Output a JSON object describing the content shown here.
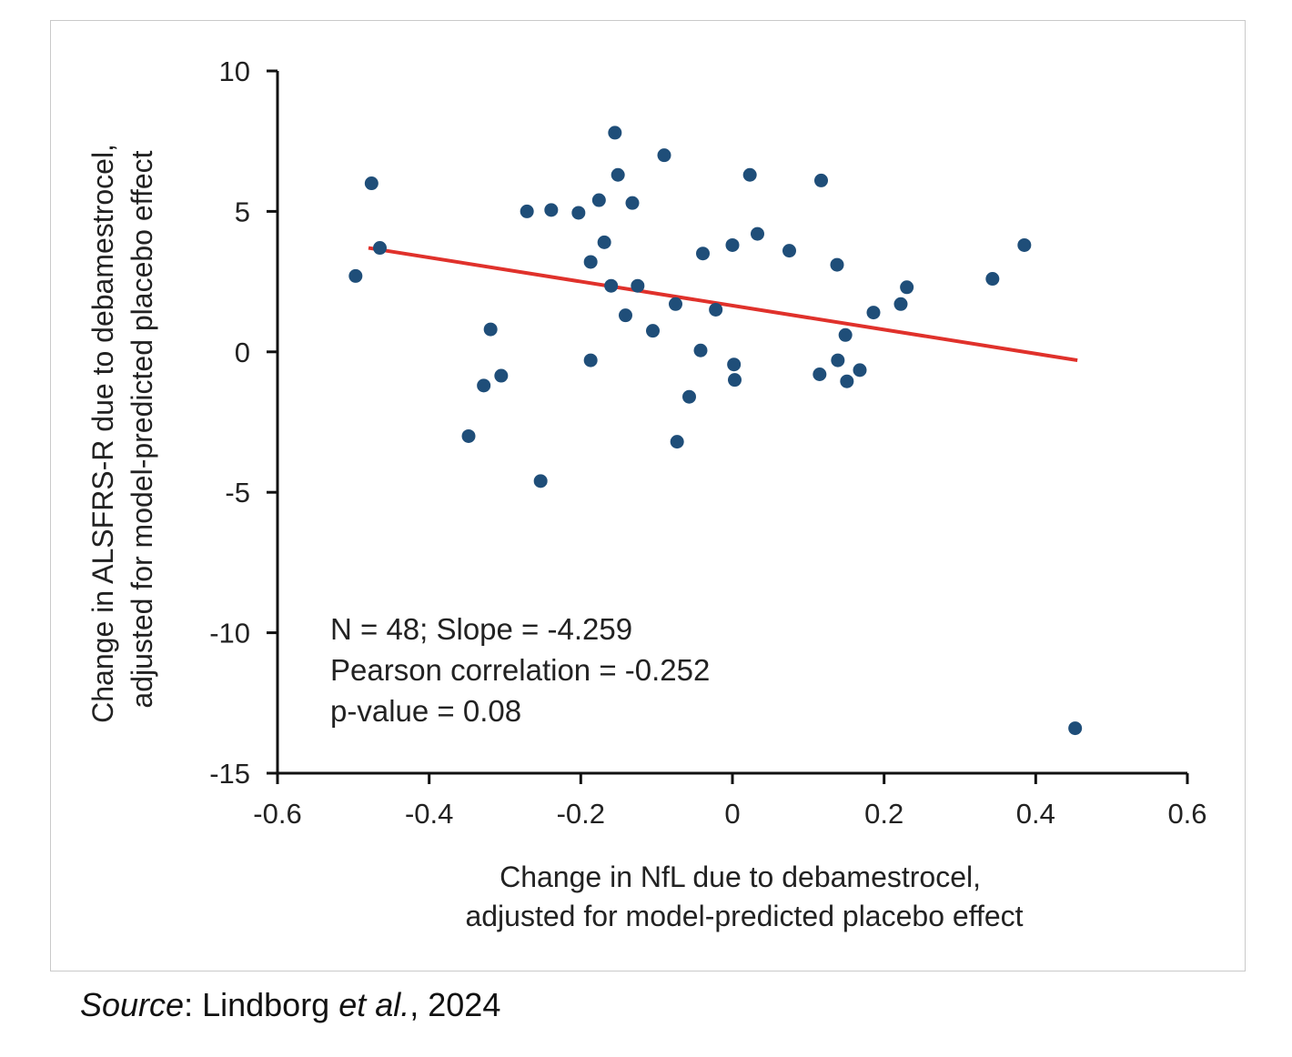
{
  "chart_data": {
    "type": "scatter",
    "xlabel_lines": [
      "Change in NfL due to debamestrocel,",
      "adjusted for model-predicted placebo effect"
    ],
    "ylabel_lines": [
      "Change in ALSFRS-R due to debamestrocel,",
      "adjusted for model-predicted placebo effect"
    ],
    "xlim": [
      -0.6,
      0.6
    ],
    "ylim": [
      -15,
      10
    ],
    "xticks": [
      -0.6,
      -0.4,
      -0.2,
      0,
      0.2,
      0.4,
      0.6
    ],
    "xtick_labels": [
      "-0.6",
      "-0.4",
      "-0.2",
      "0",
      "0.2",
      "0.4",
      "0.6"
    ],
    "yticks": [
      10,
      5,
      0,
      -5,
      -10,
      -15
    ],
    "ytick_labels": [
      "10",
      "5",
      "0",
      "-5",
      "-10",
      "-15"
    ],
    "grid": false,
    "colors": {
      "points": "#1f4e79",
      "trendline": "#e0312b",
      "axes": "#111111"
    },
    "annotations": [
      "N = 48; Slope = -4.259",
      "Pearson correlation = -0.252",
      "p-value = 0.08"
    ],
    "trendline": {
      "x": [
        -0.48,
        0.455
      ],
      "y": [
        3.7,
        -0.3
      ]
    },
    "points": [
      {
        "x": -0.497,
        "y": 2.7
      },
      {
        "x": -0.476,
        "y": 6.0
      },
      {
        "x": -0.465,
        "y": 3.7
      },
      {
        "x": -0.348,
        "y": -3.0
      },
      {
        "x": -0.328,
        "y": -1.2
      },
      {
        "x": -0.319,
        "y": 0.8
      },
      {
        "x": -0.305,
        "y": -0.85
      },
      {
        "x": -0.271,
        "y": 5.0
      },
      {
        "x": -0.253,
        "y": -4.6
      },
      {
        "x": -0.239,
        "y": 5.05
      },
      {
        "x": -0.203,
        "y": 4.95
      },
      {
        "x": -0.187,
        "y": 3.2
      },
      {
        "x": -0.187,
        "y": -0.3
      },
      {
        "x": -0.176,
        "y": 5.4
      },
      {
        "x": -0.169,
        "y": 3.9
      },
      {
        "x": -0.16,
        "y": 2.35
      },
      {
        "x": -0.155,
        "y": 7.8
      },
      {
        "x": -0.151,
        "y": 6.3
      },
      {
        "x": -0.141,
        "y": 1.3
      },
      {
        "x": -0.132,
        "y": 5.3
      },
      {
        "x": -0.125,
        "y": 2.35
      },
      {
        "x": -0.105,
        "y": 0.75
      },
      {
        "x": -0.09,
        "y": 7.0
      },
      {
        "x": -0.075,
        "y": 1.7
      },
      {
        "x": -0.073,
        "y": -3.2
      },
      {
        "x": -0.057,
        "y": -1.6
      },
      {
        "x": -0.042,
        "y": 0.05
      },
      {
        "x": -0.039,
        "y": 3.5
      },
      {
        "x": -0.022,
        "y": 1.5
      },
      {
        "x": 0.0,
        "y": 3.8
      },
      {
        "x": 0.002,
        "y": -0.45
      },
      {
        "x": 0.003,
        "y": -1.0
      },
      {
        "x": 0.023,
        "y": 6.3
      },
      {
        "x": 0.033,
        "y": 4.2
      },
      {
        "x": 0.075,
        "y": 3.6
      },
      {
        "x": 0.115,
        "y": -0.8
      },
      {
        "x": 0.117,
        "y": 6.1
      },
      {
        "x": 0.138,
        "y": 3.1
      },
      {
        "x": 0.139,
        "y": -0.3
      },
      {
        "x": 0.149,
        "y": 0.6
      },
      {
        "x": 0.151,
        "y": -1.05
      },
      {
        "x": 0.168,
        "y": -0.65
      },
      {
        "x": 0.186,
        "y": 1.4
      },
      {
        "x": 0.222,
        "y": 1.7
      },
      {
        "x": 0.23,
        "y": 2.3
      },
      {
        "x": 0.343,
        "y": 2.6
      },
      {
        "x": 0.385,
        "y": 3.8
      },
      {
        "x": 0.452,
        "y": -13.4
      }
    ]
  },
  "source": {
    "label": "Source",
    "text_after_label": ": Lindborg ",
    "et_al": "et al.",
    "year_text": ", 2024"
  }
}
